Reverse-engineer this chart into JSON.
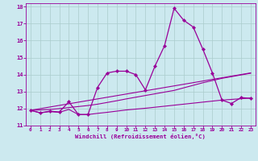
{
  "xlabel": "Windchill (Refroidissement éolien,°C)",
  "bg_color": "#cce9ef",
  "line_color": "#990099",
  "grid_color": "#aacccc",
  "xlim": [
    -0.5,
    23.5
  ],
  "ylim": [
    11,
    18.2
  ],
  "xticks": [
    0,
    1,
    2,
    3,
    4,
    5,
    6,
    7,
    8,
    9,
    10,
    11,
    12,
    13,
    14,
    15,
    16,
    17,
    18,
    19,
    20,
    21,
    22,
    23
  ],
  "yticks": [
    11,
    12,
    13,
    14,
    15,
    16,
    17,
    18
  ],
  "series_main": {
    "x": [
      0,
      1,
      2,
      3,
      4,
      5,
      6,
      7,
      8,
      9,
      10,
      11,
      12,
      13,
      14,
      15,
      16,
      17,
      18,
      19,
      20,
      21,
      22,
      23
    ],
    "y": [
      11.9,
      11.75,
      11.85,
      11.8,
      12.4,
      11.65,
      11.65,
      13.25,
      14.1,
      14.2,
      14.2,
      14.0,
      13.1,
      14.5,
      15.7,
      17.9,
      17.2,
      16.8,
      15.5,
      14.1,
      12.5,
      12.3,
      12.65,
      12.6
    ]
  },
  "series_linear": {
    "x": [
      0,
      23
    ],
    "y": [
      11.9,
      14.1
    ]
  },
  "series_curve1": {
    "x": [
      0,
      1,
      2,
      3,
      4,
      5,
      6,
      7,
      8,
      9,
      10,
      11,
      12,
      13,
      14,
      15,
      16,
      17,
      18,
      19,
      20,
      21,
      22,
      23
    ],
    "y": [
      11.9,
      11.92,
      11.95,
      12.0,
      12.06,
      12.12,
      12.18,
      12.26,
      12.36,
      12.46,
      12.57,
      12.67,
      12.77,
      12.87,
      12.97,
      13.07,
      13.22,
      13.37,
      13.52,
      13.65,
      13.78,
      13.88,
      13.98,
      14.08
    ]
  },
  "series_bottom": {
    "x": [
      0,
      1,
      2,
      3,
      4,
      5,
      6,
      7,
      8,
      9,
      10,
      11,
      12,
      13,
      14,
      15,
      16,
      17,
      18,
      19,
      20,
      21,
      22,
      23
    ],
    "y": [
      11.9,
      11.75,
      11.82,
      11.78,
      11.95,
      11.65,
      11.65,
      11.72,
      11.78,
      11.85,
      11.92,
      11.97,
      12.02,
      12.08,
      12.14,
      12.2,
      12.26,
      12.32,
      12.38,
      12.44,
      12.5,
      12.54,
      12.58,
      12.62
    ]
  }
}
